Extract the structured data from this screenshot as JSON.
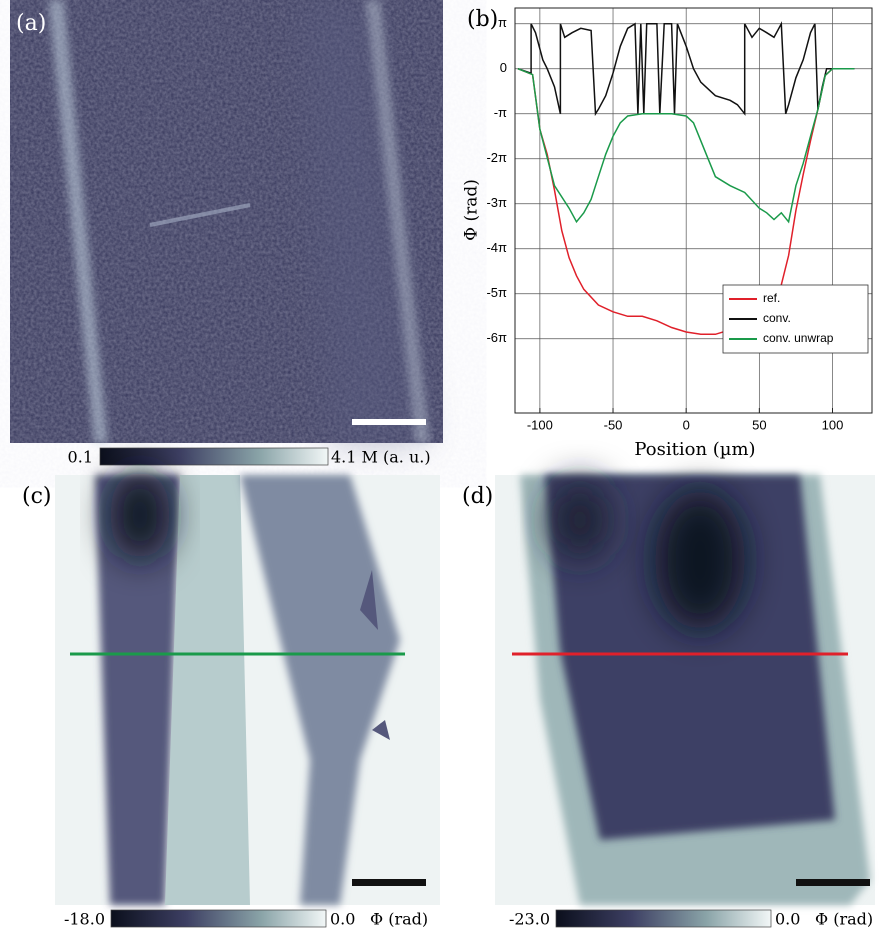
{
  "panel_a": {
    "label": "(a)",
    "colorbar": {
      "min": "0.1",
      "max": "4.1 M (a. u.)"
    }
  },
  "chart_data": {
    "type": "line",
    "label": "(b)",
    "xlabel": "Position (µm)",
    "ylabel": "Φ (rad)",
    "xlim": [
      -117,
      127
    ],
    "ylim": [
      -7.65,
      1.35
    ],
    "xticks": [
      -100,
      -50,
      0,
      50,
      100
    ],
    "yticks": [
      {
        "value": 1,
        "label": "π"
      },
      0,
      {
        "value": -1,
        "label": "-π"
      },
      {
        "value": -2,
        "label": "-2π"
      },
      {
        "value": -3,
        "label": "-3π"
      },
      {
        "value": -4,
        "label": "-4π"
      },
      {
        "value": -5,
        "label": "-5π"
      },
      {
        "value": -6,
        "label": "-6π"
      }
    ],
    "grid": true,
    "legend": "lower right",
    "series": [
      {
        "name": "ref.",
        "color": "#e0202a",
        "x": [
          -115,
          -105,
          -100,
          -95,
          -90,
          -85,
          -80,
          -75,
          -70,
          -60,
          -50,
          -40,
          -30,
          -20,
          -10,
          0,
          10,
          20,
          30,
          40,
          50,
          60,
          65,
          70,
          75,
          80,
          85,
          90,
          95,
          100,
          115
        ],
        "values": [
          0,
          -0.13,
          -1.35,
          -1.9,
          -2.7,
          -3.6,
          -4.2,
          -4.6,
          -4.9,
          -5.25,
          -5.4,
          -5.5,
          -5.5,
          -5.6,
          -5.75,
          -5.85,
          -5.9,
          -5.9,
          -5.8,
          -5.6,
          -5.45,
          -5.1,
          -4.8,
          -4.15,
          -3.15,
          -2.35,
          -1.6,
          -0.9,
          -0.15,
          0,
          0
        ]
      },
      {
        "name": "conv.",
        "color": "#111111",
        "x": [
          -115,
          -106,
          -106,
          -103,
          -98,
          -95,
          -90,
          -86,
          -86,
          -83,
          -78,
          -72,
          -65,
          -62,
          -60,
          -55,
          -50,
          -45,
          -40,
          -35,
          -33,
          -31,
          -29,
          -27,
          -20,
          -18,
          -15,
          -10,
          -8,
          -6,
          0,
          5,
          10,
          20,
          30,
          35,
          40,
          40,
          45,
          50,
          55,
          60,
          65,
          68,
          70,
          75,
          80,
          85,
          88,
          90,
          93,
          96,
          100,
          115
        ],
        "values": [
          0,
          -0.1,
          1,
          0.8,
          0.2,
          0,
          -0.4,
          -1,
          1,
          0.7,
          0.8,
          0.9,
          0.85,
          -1,
          -0.9,
          -0.6,
          -0.1,
          0.5,
          0.9,
          1,
          -1,
          1,
          -1,
          1,
          1,
          -1,
          1,
          1,
          -1,
          1,
          0.5,
          0,
          -0.3,
          -0.6,
          -0.7,
          -0.8,
          -1,
          1,
          0.7,
          0.9,
          0.8,
          0.7,
          1,
          -1,
          -0.8,
          -0.2,
          0.2,
          0.8,
          1,
          -0.9,
          -0.4,
          0,
          0,
          0
        ]
      },
      {
        "name": "conv. unwrap",
        "color": "#1a9a4a",
        "x": [
          -115,
          -105,
          -100,
          -90,
          -80,
          -75,
          -70,
          -65,
          -60,
          -55,
          -50,
          -45,
          -40,
          -30,
          -20,
          -10,
          0,
          5,
          10,
          15,
          20,
          30,
          40,
          50,
          55,
          60,
          65,
          70,
          75,
          80,
          85,
          90,
          95,
          100,
          115
        ],
        "values": [
          0,
          -0.13,
          -1.35,
          -2.6,
          -3.1,
          -3.4,
          -3.2,
          -2.9,
          -2.4,
          -1.9,
          -1.5,
          -1.2,
          -1.05,
          -1.0,
          -1.0,
          -1.0,
          -1.05,
          -1.2,
          -1.6,
          -2.0,
          -2.4,
          -2.6,
          -2.75,
          -3.1,
          -3.2,
          -3.35,
          -3.2,
          -3.4,
          -2.6,
          -2.1,
          -1.5,
          -0.9,
          -0.15,
          0,
          0
        ]
      }
    ]
  },
  "panel_c": {
    "label": "(c)",
    "colorbar": {
      "min": "-18.0",
      "max": "0.0",
      "unit": "Φ (rad)"
    }
  },
  "panel_d": {
    "label": "(d)",
    "colorbar": {
      "min": "-23.0",
      "max": "0.0",
      "unit": "Φ (rad)"
    }
  }
}
